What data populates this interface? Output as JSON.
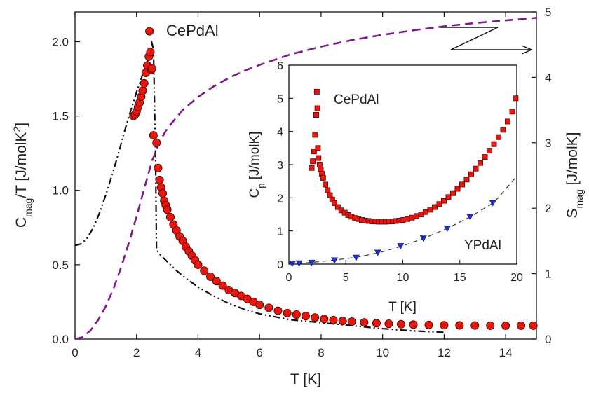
{
  "chart_data": [
    {
      "type": "scatter",
      "panel": "main",
      "annotation": "CePdAl",
      "xlabel": "T [K]",
      "ylabel_left": "C_mag/T [J/molK^2]",
      "ylabel_right": "S_mag [J/molK]",
      "xlim": [
        0,
        15
      ],
      "ylim_left": [
        0,
        2.2
      ],
      "ylim_right": [
        0,
        5
      ],
      "xticks": [
        0,
        2,
        4,
        6,
        8,
        10,
        12,
        14
      ],
      "yticks_left": [
        0.0,
        0.5,
        1.0,
        1.5,
        2.0
      ],
      "yticks_right": [
        0,
        1,
        2,
        3,
        4,
        5
      ],
      "series": [
        {
          "kind": "points",
          "axis": "left",
          "marker": "circle",
          "color": "#e8160c",
          "x": [
            1.9,
            1.95,
            2.0,
            2.05,
            2.1,
            2.15,
            2.2,
            2.25,
            2.3,
            2.35,
            2.4,
            2.42,
            2.45,
            2.48,
            2.5,
            2.55,
            2.65,
            2.7,
            2.75,
            2.8,
            2.85,
            2.9,
            2.95,
            3.0,
            3.1,
            3.2,
            3.3,
            3.4,
            3.5,
            3.6,
            3.7,
            3.8,
            3.9,
            4.0,
            4.2,
            4.4,
            4.6,
            4.8,
            5.0,
            5.2,
            5.4,
            5.6,
            5.8,
            6.0,
            6.3,
            6.6,
            6.9,
            7.2,
            7.5,
            7.8,
            8.1,
            8.4,
            8.7,
            9.0,
            9.4,
            9.8,
            10.2,
            10.6,
            11.0,
            11.5,
            12.0,
            12.5,
            13.0,
            13.5,
            14.0,
            14.5,
            14.9
          ],
          "y": [
            1.5,
            1.51,
            1.53,
            1.56,
            1.59,
            1.63,
            1.67,
            1.72,
            1.79,
            1.84,
            1.9,
            2.07,
            1.93,
            1.81,
            1.82,
            1.37,
            1.32,
            1.15,
            1.07,
            1.02,
            0.98,
            0.93,
            0.9,
            0.87,
            0.82,
            0.77,
            0.73,
            0.69,
            0.66,
            0.62,
            0.59,
            0.56,
            0.53,
            0.5,
            0.46,
            0.42,
            0.39,
            0.36,
            0.33,
            0.31,
            0.29,
            0.27,
            0.25,
            0.23,
            0.21,
            0.19,
            0.175,
            0.165,
            0.155,
            0.145,
            0.135,
            0.128,
            0.122,
            0.117,
            0.112,
            0.107,
            0.103,
            0.1,
            0.097,
            0.095,
            0.093,
            0.092,
            0.091,
            0.09,
            0.09,
            0.09,
            0.09
          ]
        },
        {
          "kind": "line",
          "axis": "left",
          "style": "dashdotdot",
          "color": "#111111",
          "x": [
            0,
            0.2,
            0.4,
            0.6,
            0.8,
            1.0,
            1.2,
            1.4,
            1.6,
            1.8,
            2.0,
            2.2,
            2.35,
            2.45,
            2.5,
            2.55,
            2.6,
            2.62,
            2.65,
            2.8,
            3.0,
            3.3,
            3.6,
            4.0,
            4.5,
            5.0,
            5.5,
            6.0,
            6.5,
            7.0,
            7.5,
            8.0,
            9.0,
            10.0,
            11.0,
            12.0
          ],
          "y": [
            0.63,
            0.64,
            0.68,
            0.75,
            0.85,
            0.97,
            1.1,
            1.24,
            1.39,
            1.53,
            1.66,
            1.78,
            1.86,
            1.95,
            1.99,
            1.95,
            1.4,
            1.2,
            0.6,
            0.56,
            0.52,
            0.46,
            0.41,
            0.35,
            0.29,
            0.24,
            0.2,
            0.17,
            0.15,
            0.13,
            0.12,
            0.11,
            0.09,
            0.07,
            0.055,
            0.045
          ]
        },
        {
          "kind": "line",
          "axis": "right",
          "style": "dashed",
          "color": "#7f1a8a",
          "x": [
            0,
            0.25,
            0.5,
            0.75,
            1.0,
            1.25,
            1.5,
            1.75,
            2.0,
            2.25,
            2.5,
            2.75,
            3.0,
            3.5,
            4.0,
            4.5,
            5.0,
            5.5,
            6.0,
            6.5,
            7.0,
            8.0,
            9.0,
            10.0,
            11.0,
            12.0,
            13.0,
            14.0,
            15.0
          ],
          "y": [
            0,
            0.03,
            0.13,
            0.29,
            0.5,
            0.77,
            1.1,
            1.47,
            1.87,
            2.3,
            2.72,
            3.02,
            3.22,
            3.5,
            3.7,
            3.86,
            3.99,
            4.1,
            4.19,
            4.27,
            4.35,
            4.47,
            4.57,
            4.65,
            4.72,
            4.78,
            4.83,
            4.87,
            4.91
          ]
        }
      ]
    },
    {
      "type": "scatter",
      "panel": "inset",
      "annotations": [
        "CePdAl",
        "YPdAl"
      ],
      "xlabel": "T [K]",
      "ylabel": "C_p [J/molK]",
      "xlim": [
        0,
        20
      ],
      "ylim": [
        0,
        6
      ],
      "xticks": [
        0,
        5,
        10,
        15,
        20
      ],
      "yticks": [
        0,
        1,
        2,
        3,
        4,
        5,
        6
      ],
      "series": [
        {
          "kind": "points",
          "marker": "square",
          "color": "#e8160c",
          "x": [
            2.0,
            2.1,
            2.2,
            2.3,
            2.4,
            2.45,
            2.5,
            2.55,
            2.6,
            2.7,
            2.8,
            2.9,
            3.0,
            3.2,
            3.4,
            3.6,
            3.8,
            4.0,
            4.3,
            4.6,
            4.9,
            5.2,
            5.5,
            5.8,
            6.1,
            6.4,
            6.7,
            7.0,
            7.3,
            7.6,
            7.9,
            8.2,
            8.5,
            8.8,
            9.1,
            9.4,
            9.7,
            10.0,
            10.4,
            10.8,
            11.2,
            11.6,
            12.0,
            12.4,
            12.8,
            13.2,
            13.6,
            14.0,
            14.4,
            14.8,
            15.2,
            15.6,
            16.0,
            16.4,
            16.8,
            17.2,
            17.6,
            18.0,
            18.4,
            18.8,
            19.2,
            19.6,
            19.9
          ],
          "y": [
            2.9,
            3.1,
            3.4,
            3.9,
            4.5,
            5.2,
            4.7,
            3.5,
            3.2,
            3.0,
            2.85,
            2.72,
            2.6,
            2.4,
            2.23,
            2.08,
            1.95,
            1.84,
            1.72,
            1.62,
            1.55,
            1.48,
            1.43,
            1.39,
            1.36,
            1.33,
            1.31,
            1.3,
            1.29,
            1.285,
            1.28,
            1.28,
            1.28,
            1.285,
            1.29,
            1.3,
            1.31,
            1.33,
            1.36,
            1.4,
            1.45,
            1.5,
            1.57,
            1.64,
            1.72,
            1.81,
            1.91,
            2.02,
            2.14,
            2.27,
            2.4,
            2.55,
            2.71,
            2.88,
            3.05,
            3.23,
            3.42,
            3.62,
            3.83,
            4.05,
            4.3,
            4.6,
            5.0
          ]
        },
        {
          "kind": "points",
          "marker": "triangle-down",
          "color": "#1f2fd6",
          "x": [
            0.3,
            0.9,
            2.0,
            4.0,
            5.9,
            7.8,
            9.8,
            11.8,
            13.9,
            15.9,
            17.9
          ],
          "y": [
            0.02,
            0.03,
            0.05,
            0.12,
            0.2,
            0.35,
            0.55,
            0.78,
            1.08,
            1.43,
            1.85
          ]
        },
        {
          "kind": "line",
          "style": "dashed",
          "color": "#333333",
          "x": [
            0,
            2,
            4,
            6,
            8,
            10,
            12,
            14,
            16,
            18,
            20
          ],
          "y": [
            0.0,
            0.05,
            0.12,
            0.21,
            0.35,
            0.55,
            0.8,
            1.09,
            1.44,
            1.86,
            2.65
          ]
        }
      ]
    }
  ],
  "text": {
    "xlabel": "T [K]",
    "ylabel_left_main": "C",
    "ylabel_left_sub": "mag",
    "ylabel_left_rest": "/T [J/molK",
    "ylabel_left_sup": "2",
    "ylabel_left_end": "]",
    "ylabel_right_main": "S",
    "ylabel_right_sub": "mag",
    "ylabel_right_rest": " [J/molK]",
    "annotation_main": "CePdAl",
    "inset_xlabel": "T [K]",
    "inset_ylabel_main": "C",
    "inset_ylabel_sub": "p",
    "inset_ylabel_rest": " [J/molK]",
    "inset_annotation_ce": "CePdAl",
    "inset_annotation_y": "YPdAl"
  }
}
